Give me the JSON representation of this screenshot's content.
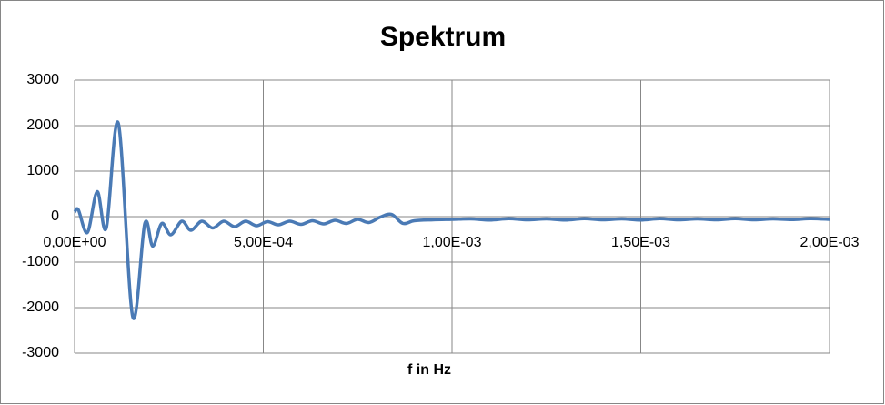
{
  "chart_data": {
    "type": "line",
    "title": "Spektrum",
    "x_label": "f in Hz",
    "x": [
      0,
      1e-05,
      3.4e-05,
      6e-05,
      8.4e-05,
      0.000116,
      0.000154,
      0.000186,
      0.000207,
      0.000231,
      0.000255,
      0.000284,
      0.000308,
      0.000337,
      0.000366,
      0.000395,
      0.000424,
      0.000453,
      0.000482,
      0.000511,
      0.00054,
      0.00057,
      0.0006,
      0.00063,
      0.00066,
      0.00069,
      0.00072,
      0.00075,
      0.00078,
      0.00081,
      0.00084,
      0.00087,
      0.0009,
      0.00095,
      0.001,
      0.00105,
      0.0011,
      0.00115,
      0.0012,
      0.00125,
      0.0013,
      0.00135,
      0.0014,
      0.00145,
      0.0015,
      0.00155,
      0.0016,
      0.00165,
      0.0017,
      0.00175,
      0.0018,
      0.00185,
      0.0019,
      0.00195,
      0.002
    ],
    "series": [
      {
        "color": "#4a7ab5",
        "values": [
          100,
          150,
          -350,
          550,
          -250,
          2050,
          -2200,
          -150,
          -650,
          -150,
          -400,
          -100,
          -300,
          -100,
          -250,
          -100,
          -220,
          -100,
          -200,
          -110,
          -180,
          -100,
          -170,
          -90,
          -160,
          -80,
          -150,
          -60,
          -130,
          -10,
          50,
          -150,
          -90,
          -70,
          -60,
          -50,
          -75,
          -45,
          -70,
          -50,
          -75,
          -45,
          -70,
          -50,
          -75,
          -45,
          -70,
          -50,
          -70,
          -45,
          -70,
          -50,
          -65,
          -45,
          -60
        ]
      }
    ],
    "xlim": [
      0,
      0.002
    ],
    "xticks": [
      {
        "value": 0,
        "label": "0,00E+00"
      },
      {
        "value": 0.0005,
        "label": "5,00E-04"
      },
      {
        "value": 0.001,
        "label": "1,00E-03"
      },
      {
        "value": 0.0015,
        "label": "1,50E-03"
      },
      {
        "value": 0.002,
        "label": "2,00E-03"
      }
    ],
    "ylim": [
      -3000,
      3000
    ],
    "yticks": [
      -3000,
      -2000,
      -1000,
      0,
      1000,
      2000,
      3000
    ],
    "grid": true
  }
}
